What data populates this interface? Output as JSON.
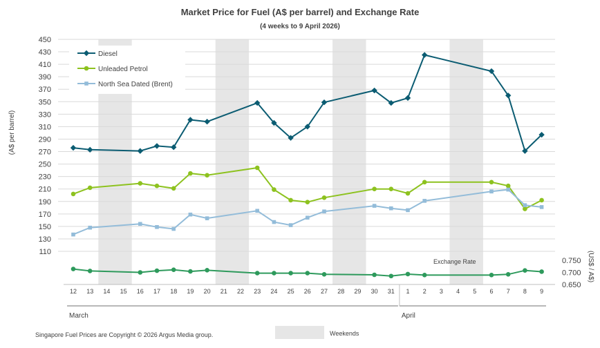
{
  "chart_data": {
    "type": "line",
    "title": "Market Price for Fuel (A$ per barrel) and Exchange Rate",
    "subtitle": "(4 weeks to 9 April 2026)",
    "ylabel_left": "(A$ per barrel)",
    "ylabel_right": "(US$ / A$)",
    "yticks_left": [
      110,
      130,
      150,
      170,
      190,
      210,
      230,
      250,
      270,
      290,
      310,
      330,
      350,
      370,
      390,
      410,
      430,
      450
    ],
    "ylim_left": [
      110,
      450
    ],
    "yticks_right": [
      "0.750",
      "0.700",
      "0.650"
    ],
    "ylim_right": [
      0.65,
      0.75
    ],
    "x_labels": [
      "12",
      "13",
      "14",
      "15",
      "16",
      "17",
      "18",
      "19",
      "20",
      "21",
      "22",
      "23",
      "24",
      "25",
      "26",
      "27",
      "28",
      "29",
      "30",
      "31",
      "1",
      "2",
      "3",
      "4",
      "5",
      "6",
      "7",
      "8",
      "9"
    ],
    "month_labels": [
      {
        "label": "March",
        "start_index": 0
      },
      {
        "label": "April",
        "start_index": 20
      }
    ],
    "weekend_bands": [
      [
        2,
        3
      ],
      [
        9,
        10
      ],
      [
        16,
        17
      ],
      [
        23,
        24
      ]
    ],
    "series": [
      {
        "name": "Diesel",
        "color": "#0b5c72",
        "marker": "diamond",
        "values": [
          276,
          273,
          null,
          null,
          271,
          279,
          277,
          321,
          318,
          null,
          null,
          348,
          316,
          292,
          310,
          349,
          null,
          null,
          368,
          348,
          356,
          425,
          null,
          null,
          null,
          399,
          360,
          271,
          297
        ]
      },
      {
        "name": "Unleaded Petrol",
        "color": "#8dc21f",
        "marker": "circle",
        "values": [
          202,
          212,
          null,
          null,
          219,
          215,
          211,
          235,
          232,
          null,
          null,
          244,
          209,
          192,
          189,
          196,
          null,
          null,
          210,
          210,
          203,
          221,
          null,
          null,
          null,
          221,
          215,
          178,
          192
        ]
      },
      {
        "name": "North Sea Dated (Brent)",
        "color": "#93bcd9",
        "marker": "square",
        "values": [
          137,
          148,
          null,
          null,
          154,
          149,
          146,
          169,
          163,
          null,
          null,
          175,
          157,
          152,
          164,
          174,
          null,
          null,
          183,
          179,
          176,
          191,
          null,
          null,
          null,
          206,
          209,
          184,
          181
        ]
      },
      {
        "name": "Exchange Rate",
        "color": "#2e9a5c",
        "marker": "circle",
        "axis": "right",
        "values": [
          0.714,
          0.706,
          null,
          null,
          0.7,
          0.707,
          0.711,
          0.704,
          0.709,
          null,
          null,
          0.697,
          0.697,
          0.697,
          0.697,
          0.692,
          null,
          null,
          0.69,
          0.685,
          0.693,
          0.689,
          null,
          null,
          null,
          0.689,
          0.692,
          0.708,
          0.703
        ]
      }
    ],
    "legend": {
      "position": "top-left",
      "entries": [
        "Diesel",
        "Unleaded Petrol",
        "North Sea Dated (Brent)"
      ]
    },
    "exchange_rate_label": "Exchange Rate",
    "weekend_legend_label": "Weekends",
    "copyright": "Singapore Fuel Prices are Copyright © 2026 Argus Media group."
  }
}
